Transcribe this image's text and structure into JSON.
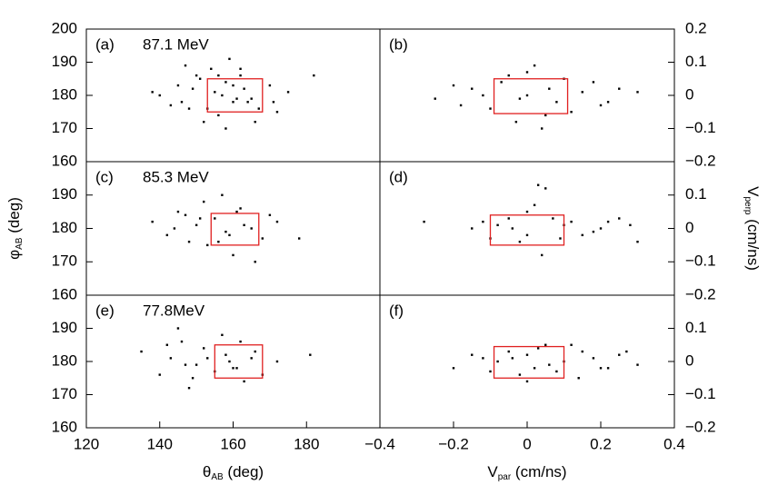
{
  "chart_data": [
    {
      "type": "scatter",
      "label": "(a)",
      "annotation": "87.1 MeV",
      "xlim": [
        120,
        200
      ],
      "ylim": [
        160,
        200
      ],
      "yticks": [
        160,
        170,
        180,
        190,
        200
      ],
      "yaxis_side": "left",
      "color": "#000000",
      "x": [
        140,
        145,
        148,
        150,
        152,
        155,
        158,
        160,
        162,
        165,
        170,
        172,
        175,
        182,
        146,
        151,
        156,
        159,
        163,
        167,
        157,
        161,
        149,
        143,
        138,
        166,
        154,
        158,
        162,
        160,
        156,
        164,
        153,
        147,
        171
      ],
      "y": [
        180,
        183,
        176,
        186,
        172,
        181,
        184,
        178,
        188,
        179,
        183,
        175,
        181,
        186,
        178,
        185,
        174,
        191,
        182,
        176,
        180,
        179,
        182,
        177,
        181,
        172,
        188,
        170,
        186,
        183,
        186,
        178,
        176,
        189,
        178
      ],
      "region": {
        "x": [
          153,
          168
        ],
        "y": [
          175,
          185
        ],
        "color": "#e02020"
      }
    },
    {
      "type": "scatter",
      "label": "(b)",
      "xlim": [
        -0.4,
        0.4
      ],
      "ylim": [
        -0.2,
        0.2
      ],
      "yticks": [
        {
          "value": -0.2,
          "label": "−0.2"
        },
        {
          "value": -0.1,
          "label": "−0.1"
        },
        0,
        0.1,
        0.2
      ],
      "yaxis_side": "right",
      "color": "#000000",
      "x": [
        -0.25,
        -0.2,
        -0.15,
        -0.1,
        -0.05,
        0,
        0.05,
        0.1,
        0.15,
        0.2,
        0.25,
        0.3,
        -0.12,
        -0.03,
        0.02,
        0.08,
        0.12,
        -0.07,
        0.04,
        0.18,
        0.22,
        -0.18,
        0.0,
        0.06,
        -0.02
      ],
      "y": [
        -0.01,
        0.03,
        0.02,
        -0.04,
        0.06,
        0.07,
        -0.06,
        0.05,
        0.01,
        -0.03,
        0.02,
        0.01,
        0.0,
        -0.08,
        0.09,
        -0.02,
        -0.05,
        0.04,
        -0.1,
        0.04,
        -0.02,
        -0.03,
        0.0,
        0.02,
        -0.01
      ],
      "region": {
        "x": [
          -0.09,
          0.11
        ],
        "y": [
          -0.055,
          0.05
        ],
        "color": "#e02020"
      }
    },
    {
      "type": "scatter",
      "label": "(c)",
      "annotation": "85.3 MeV",
      "xlim": [
        120,
        200
      ],
      "ylim": [
        160,
        200
      ],
      "yticks": [
        160,
        170,
        180,
        190
      ],
      "yaxis_side": "left",
      "color": "#000000",
      "ylabel": {
        "symbol": "φ",
        "sub": "AB",
        "unit": " (deg)"
      },
      "x": [
        138,
        142,
        145,
        148,
        150,
        152,
        155,
        158,
        160,
        162,
        165,
        168,
        172,
        178,
        147,
        153,
        157,
        163,
        166,
        159,
        144,
        151,
        161,
        156,
        170
      ],
      "y": [
        182,
        178,
        185,
        176,
        181,
        188,
        183,
        179,
        172,
        186,
        180,
        177,
        182,
        177,
        184,
        175,
        190,
        181,
        170,
        178,
        180,
        183,
        185,
        176,
        184
      ],
      "region": {
        "x": [
          154,
          167
        ],
        "y": [
          175,
          184.5
        ],
        "color": "#e02020"
      }
    },
    {
      "type": "scatter",
      "label": "(d)",
      "xlim": [
        -0.4,
        0.4
      ],
      "ylim": [
        -0.2,
        0.2
      ],
      "yticks": [
        {
          "value": -0.2,
          "label": "−0.2"
        },
        {
          "value": -0.1,
          "label": "−0.1"
        },
        0,
        0.1
      ],
      "yaxis_side": "right",
      "color": "#000000",
      "ylabel": {
        "symbol": "V",
        "sub": "perp",
        "unit": " (cm/ns)"
      },
      "x": [
        -0.28,
        -0.15,
        -0.1,
        -0.05,
        0,
        0.03,
        0.05,
        0.1,
        0.15,
        0.2,
        0.25,
        0.3,
        -0.08,
        -0.02,
        0.07,
        0.12,
        0.18,
        0.02,
        0.04,
        -0.12,
        0.22,
        0.0,
        0.09,
        -0.04,
        0.28
      ],
      "y": [
        0.02,
        0.0,
        -0.03,
        0.03,
        0.05,
        0.13,
        0.12,
        0.01,
        -0.02,
        0.0,
        0.03,
        -0.04,
        0.01,
        -0.04,
        0.03,
        0.02,
        -0.01,
        0.07,
        -0.08,
        0.02,
        0.02,
        -0.02,
        -0.03,
        0.0,
        0.01
      ],
      "region": {
        "x": [
          -0.1,
          0.1
        ],
        "y": [
          -0.05,
          0.04
        ],
        "color": "#e02020"
      }
    },
    {
      "type": "scatter",
      "label": "(e)",
      "annotation": "77.8MeV",
      "xlim": [
        120,
        200
      ],
      "ylim": [
        160,
        200
      ],
      "xticks": [
        120,
        140,
        160,
        180
      ],
      "yticks": [
        160,
        170,
        180,
        190
      ],
      "yaxis_side": "left",
      "color": "#000000",
      "xlabel": {
        "symbol": "θ",
        "sub": "AB",
        "unit": " (deg)"
      },
      "x": [
        135,
        140,
        143,
        146,
        148,
        150,
        152,
        155,
        158,
        160,
        162,
        165,
        168,
        172,
        181,
        145,
        149,
        157,
        163,
        166,
        153,
        147,
        159,
        161,
        142
      ],
      "y": [
        183,
        176,
        181,
        186,
        172,
        179,
        184,
        177,
        182,
        178,
        186,
        181,
        176,
        180,
        182,
        190,
        175,
        188,
        174,
        183,
        181,
        179,
        180,
        178,
        185
      ],
      "region": {
        "x": [
          155,
          168
        ],
        "y": [
          175,
          185
        ],
        "color": "#e02020"
      }
    },
    {
      "type": "scatter",
      "label": "(f)",
      "xlim": [
        -0.4,
        0.4
      ],
      "ylim": [
        -0.2,
        0.2
      ],
      "xticks": [
        {
          "value": -0.4,
          "label": "−0.4"
        },
        {
          "value": -0.2,
          "label": "−0.2"
        },
        0,
        0.2,
        0.4
      ],
      "yticks": [
        {
          "value": -0.2,
          "label": "−0.2"
        },
        {
          "value": -0.1,
          "label": "−0.1"
        },
        0,
        0.1
      ],
      "yaxis_side": "right",
      "color": "#000000",
      "xlabel": {
        "symbol": "V",
        "sub": "par",
        "unit": " (cm/ns)"
      },
      "x": [
        -0.2,
        -0.15,
        -0.1,
        -0.05,
        0,
        0.05,
        0.1,
        0.15,
        0.2,
        0.25,
        0.3,
        -0.08,
        -0.02,
        0.03,
        0.08,
        0.12,
        0.18,
        0.22,
        -0.12,
        0.0,
        0.06,
        -0.04,
        0.14,
        0.02,
        0.27
      ],
      "y": [
        -0.02,
        0.02,
        -0.03,
        0.03,
        -0.06,
        0.05,
        0.0,
        0.03,
        -0.02,
        0.02,
        -0.01,
        0.0,
        -0.04,
        0.04,
        -0.03,
        0.05,
        0.01,
        -0.02,
        0.01,
        0.02,
        -0.01,
        0.01,
        -0.05,
        -0.02,
        0.03
      ],
      "region": {
        "x": [
          -0.09,
          0.1
        ],
        "y": [
          -0.05,
          0.045
        ],
        "color": "#e02020"
      }
    }
  ]
}
